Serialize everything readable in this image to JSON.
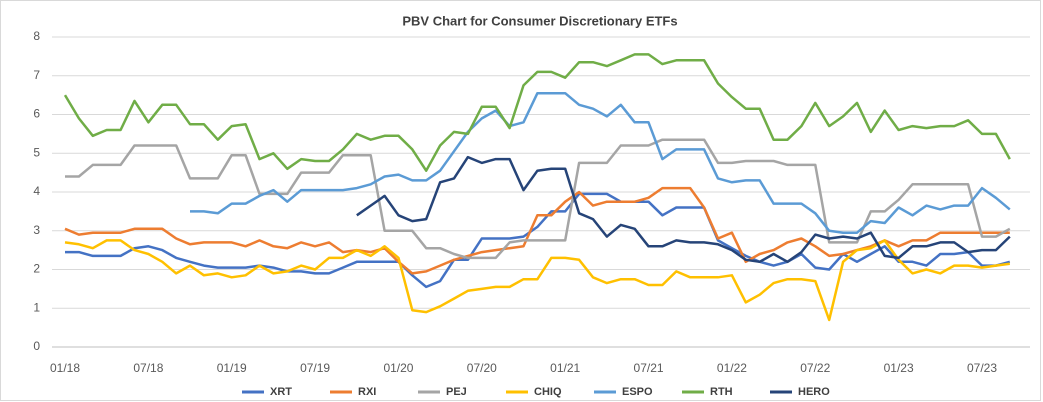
{
  "chart_data": {
    "type": "line",
    "title": "PBV Chart for Consumer Discretionary ETFs",
    "categories": [
      "01/18",
      null,
      null,
      null,
      null,
      null,
      "07/18",
      null,
      null,
      null,
      null,
      null,
      "01/19",
      null,
      null,
      null,
      null,
      null,
      "07/19",
      null,
      null,
      null,
      null,
      null,
      "01/20",
      null,
      null,
      null,
      null,
      null,
      "07/20",
      null,
      null,
      null,
      null,
      null,
      "01/21",
      null,
      null,
      null,
      null,
      null,
      "07/21",
      null,
      null,
      null,
      null,
      null,
      "01/22",
      null,
      null,
      null,
      null,
      null,
      "07/22",
      null,
      null,
      null,
      null,
      null,
      "01/23",
      null,
      null,
      null,
      null,
      null,
      "07/23",
      null,
      null
    ],
    "ylim": [
      0,
      8
    ],
    "yticks": [
      0,
      1,
      2,
      3,
      4,
      5,
      6,
      7,
      8
    ],
    "grid": true,
    "legend": "bottom",
    "series": [
      {
        "name": "XRT",
        "color": "#4472c4",
        "values": [
          2.45,
          2.45,
          2.35,
          2.35,
          2.35,
          2.55,
          2.6,
          2.5,
          2.3,
          2.2,
          2.1,
          2.05,
          2.05,
          2.05,
          2.1,
          2.05,
          1.95,
          1.95,
          1.9,
          1.9,
          2.05,
          2.2,
          2.2,
          2.2,
          2.2,
          1.85,
          1.55,
          1.7,
          2.25,
          2.25,
          2.8,
          2.8,
          2.8,
          2.85,
          3.1,
          3.5,
          3.5,
          3.95,
          3.95,
          3.95,
          3.75,
          3.75,
          3.75,
          3.4,
          3.6,
          3.6,
          3.6,
          2.75,
          2.55,
          2.35,
          2.2,
          2.1,
          2.2,
          2.4,
          2.05,
          2.0,
          2.4,
          2.2,
          2.4,
          2.6,
          2.2,
          2.2,
          2.1,
          2.4,
          2.4,
          2.45,
          2.1,
          2.1,
          2.2
        ]
      },
      {
        "name": "RXI",
        "color": "#ed7d31",
        "values": [
          3.05,
          2.9,
          2.95,
          2.95,
          2.95,
          3.05,
          3.05,
          3.05,
          2.8,
          2.65,
          2.7,
          2.7,
          2.7,
          2.6,
          2.75,
          2.6,
          2.55,
          2.7,
          2.6,
          2.7,
          2.45,
          2.5,
          2.45,
          2.55,
          2.2,
          1.9,
          1.95,
          2.1,
          2.25,
          2.35,
          2.45,
          2.5,
          2.55,
          2.6,
          3.4,
          3.4,
          3.75,
          4.0,
          3.65,
          3.75,
          3.75,
          3.75,
          3.85,
          4.1,
          4.1,
          4.1,
          3.6,
          2.8,
          2.95,
          2.2,
          2.4,
          2.5,
          2.7,
          2.8,
          2.6,
          2.35,
          2.4,
          2.5,
          2.6,
          2.75,
          2.6,
          2.75,
          2.75,
          2.95,
          2.95,
          2.95,
          2.95,
          2.95,
          2.95
        ]
      },
      {
        "name": "PEJ",
        "color": "#a5a5a5",
        "values": [
          4.4,
          4.4,
          4.7,
          4.7,
          4.7,
          5.2,
          5.2,
          5.2,
          5.2,
          4.35,
          4.35,
          4.35,
          4.95,
          4.95,
          3.95,
          3.95,
          3.95,
          4.5,
          4.5,
          4.5,
          4.95,
          4.95,
          4.95,
          3.0,
          3.0,
          3.0,
          2.55,
          2.55,
          2.4,
          2.3,
          2.3,
          2.3,
          2.7,
          2.75,
          2.75,
          2.75,
          2.75,
          4.75,
          4.75,
          4.75,
          5.2,
          5.2,
          5.2,
          5.35,
          5.35,
          5.35,
          5.35,
          4.75,
          4.75,
          4.8,
          4.8,
          4.8,
          4.7,
          4.7,
          4.7,
          2.7,
          2.7,
          2.7,
          3.5,
          3.5,
          3.8,
          4.2,
          4.2,
          4.2,
          4.2,
          4.2,
          2.85,
          2.85,
          3.05
        ]
      },
      {
        "name": "CHIQ",
        "color": "#ffc000",
        "values": [
          2.7,
          2.65,
          2.55,
          2.75,
          2.75,
          2.5,
          2.4,
          2.2,
          1.9,
          2.1,
          1.85,
          1.9,
          1.8,
          1.85,
          2.1,
          1.9,
          1.95,
          2.1,
          2.0,
          2.3,
          2.3,
          2.5,
          2.35,
          2.6,
          2.3,
          0.95,
          0.9,
          1.05,
          1.25,
          1.45,
          1.5,
          1.55,
          1.55,
          1.75,
          1.75,
          2.3,
          2.3,
          2.25,
          1.8,
          1.65,
          1.75,
          1.75,
          1.6,
          1.6,
          1.95,
          1.8,
          1.8,
          1.8,
          1.85,
          1.15,
          1.35,
          1.65,
          1.75,
          1.75,
          1.7,
          0.7,
          2.2,
          2.5,
          2.55,
          2.75,
          2.25,
          1.9,
          2.0,
          1.9,
          2.1,
          2.1,
          2.05,
          2.1,
          2.15
        ]
      },
      {
        "name": "ESPO",
        "color": "#5b9bd5",
        "values": [
          null,
          null,
          null,
          null,
          null,
          null,
          null,
          null,
          null,
          3.5,
          3.5,
          3.45,
          3.7,
          3.7,
          3.9,
          4.05,
          3.75,
          4.05,
          4.05,
          4.05,
          4.05,
          4.1,
          4.2,
          4.4,
          4.45,
          4.3,
          4.3,
          4.55,
          5.05,
          5.55,
          5.9,
          6.1,
          5.7,
          5.8,
          6.55,
          6.55,
          6.55,
          6.25,
          6.15,
          5.95,
          6.25,
          5.8,
          5.8,
          4.85,
          5.1,
          5.1,
          5.1,
          4.35,
          4.25,
          4.3,
          4.3,
          3.7,
          3.7,
          3.7,
          3.45,
          3.0,
          2.95,
          2.95,
          3.25,
          3.2,
          3.6,
          3.4,
          3.65,
          3.55,
          3.65,
          3.65,
          4.1,
          3.85,
          3.55
        ]
      },
      {
        "name": "RTH",
        "color": "#70ad47",
        "values": [
          6.5,
          5.9,
          5.45,
          5.6,
          5.6,
          6.35,
          5.8,
          6.25,
          6.25,
          5.75,
          5.75,
          5.35,
          5.7,
          5.75,
          4.85,
          5.0,
          4.6,
          4.85,
          4.8,
          4.8,
          5.1,
          5.5,
          5.35,
          5.45,
          5.45,
          5.1,
          4.55,
          5.2,
          5.55,
          5.5,
          6.2,
          6.2,
          5.65,
          6.75,
          7.1,
          7.1,
          6.95,
          7.35,
          7.35,
          7.25,
          7.4,
          7.55,
          7.55,
          7.3,
          7.4,
          7.4,
          7.4,
          6.8,
          6.45,
          6.15,
          6.15,
          5.35,
          5.35,
          5.7,
          6.3,
          5.7,
          5.95,
          6.3,
          5.55,
          6.1,
          5.6,
          5.7,
          5.65,
          5.7,
          5.7,
          5.85,
          5.5,
          5.5,
          4.85
        ]
      },
      {
        "name": "HERO",
        "color": "#264478",
        "values": [
          null,
          null,
          null,
          null,
          null,
          null,
          null,
          null,
          null,
          null,
          null,
          null,
          null,
          null,
          null,
          null,
          null,
          null,
          null,
          null,
          null,
          3.4,
          3.65,
          3.9,
          3.4,
          3.25,
          3.3,
          4.25,
          4.35,
          4.9,
          4.75,
          4.85,
          4.85,
          4.05,
          4.55,
          4.6,
          4.6,
          3.45,
          3.3,
          2.85,
          3.15,
          3.05,
          2.6,
          2.6,
          2.75,
          2.7,
          2.7,
          2.65,
          2.5,
          2.25,
          2.2,
          2.4,
          2.2,
          2.45,
          2.9,
          2.8,
          2.85,
          2.8,
          2.95,
          2.35,
          2.3,
          2.6,
          2.6,
          2.7,
          2.7,
          2.45,
          2.5,
          2.5,
          2.85
        ]
      }
    ]
  }
}
